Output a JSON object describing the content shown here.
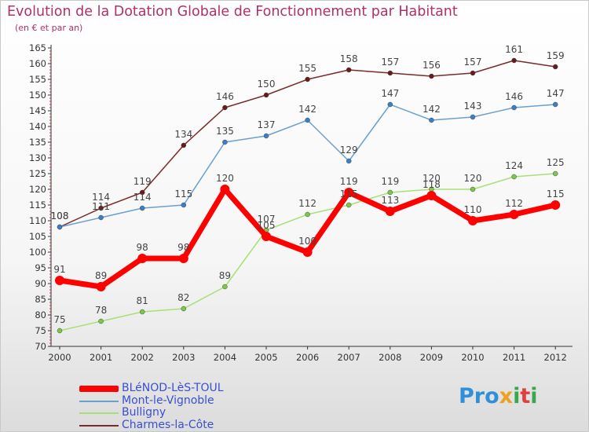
{
  "chart_data": {
    "type": "line",
    "title": "Evolution de la Dotation Globale de Fonctionnement par Habitant",
    "subtitle": "(en € et par an)",
    "xlabel": "",
    "ylabel": "",
    "categories": [
      "2000",
      "2001",
      "2002",
      "2003",
      "2004",
      "2005",
      "2006",
      "2007",
      "2008",
      "2009",
      "2010",
      "2011",
      "2012"
    ],
    "ylim": [
      70,
      165
    ],
    "ytick_step": 5,
    "grid": false,
    "legend_position": "bottom-left",
    "series": [
      {
        "name": "Charmes-la-Côte",
        "color": "#7a2a2a",
        "marker": "#6a1a1a",
        "values": [
          108,
          114,
          119,
          134,
          146,
          150,
          155,
          158,
          157,
          156,
          157,
          161,
          159
        ],
        "labels": [
          "108",
          "114",
          "119",
          "134",
          "146",
          "150",
          "155",
          "158",
          "157",
          "156",
          "157",
          "161",
          "159"
        ]
      },
      {
        "name": "Mont-le-Vignoble",
        "color": "#6aa0d0",
        "marker": "#3a80c8",
        "values": [
          108,
          111,
          114,
          115,
          135,
          137,
          142,
          129,
          147,
          142,
          143,
          146,
          147
        ],
        "labels": [
          "108",
          "111",
          "114",
          "115",
          "135",
          "137",
          "142",
          "129",
          "147",
          "142",
          "143",
          "146",
          "147"
        ]
      },
      {
        "name": "Bulligny",
        "color": "#a8e078",
        "marker": "#7cc848",
        "values": [
          75,
          78,
          81,
          82,
          89,
          107,
          112,
          115,
          119,
          120,
          120,
          124,
          125
        ],
        "labels": [
          "75",
          "78",
          "81",
          "82",
          "89",
          "107",
          "112",
          "115",
          "119",
          "120",
          "120",
          "124",
          "125"
        ]
      },
      {
        "name": "BLéNOD-LèS-TOUL",
        "color": "#ff0000",
        "marker": "#ff0000",
        "values": [
          91,
          89,
          98,
          98,
          120,
          105,
          100,
          119,
          113,
          118,
          110,
          112,
          115
        ],
        "labels": [
          "91",
          "89",
          "98",
          "98",
          "120",
          "105",
          "100",
          "119",
          "113",
          "118",
          "110",
          "112",
          "115"
        ]
      }
    ],
    "legend_order": [
      "BLéNOD-LèS-TOUL",
      "Mont-le-Vignoble",
      "Bulligny",
      "Charmes-la-Côte"
    ]
  },
  "logo": {
    "text_parts": [
      "Pro",
      "x",
      "i",
      "t",
      "i"
    ]
  }
}
